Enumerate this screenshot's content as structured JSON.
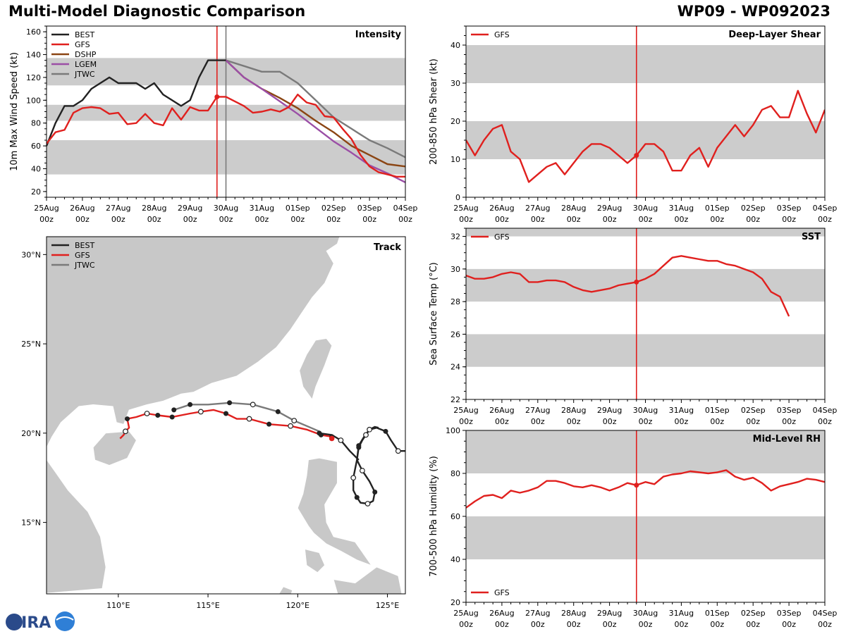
{
  "header": {
    "title": "Multi-Model Diagnostic Comparison",
    "storm_id": "WP09 - WP092023"
  },
  "logo_text": "CIRA",
  "colors": {
    "BEST": "#222222",
    "GFS": "#e0201e",
    "DSHP": "#8b4513",
    "LGEM": "#9b4fa6",
    "JTWC": "#7a7a7a",
    "band": "#cccccc",
    "land": "#c8c8c8"
  },
  "time_axis": {
    "labels": [
      "25Aug",
      "26Aug",
      "27Aug",
      "28Aug",
      "29Aug",
      "30Aug",
      "31Aug",
      "01Sep",
      "02Sep",
      "03Sep",
      "04Sep"
    ],
    "sublabel": "00z",
    "range_days": [
      0,
      10
    ],
    "current_day": 4.75,
    "jtwc_init_day": 5.0
  },
  "chart_data": [
    {
      "id": "intensity",
      "type": "line",
      "title": "Intensity",
      "ylabel": "10m Max Wind Speed (kt)",
      "ylim": [
        15,
        165
      ],
      "yticks": [
        20,
        40,
        60,
        80,
        100,
        120,
        140,
        160
      ],
      "bands": [
        [
          35,
          65
        ],
        [
          82,
          96
        ],
        [
          113,
          137
        ]
      ],
      "legend": [
        "BEST",
        "GFS",
        "DSHP",
        "LGEM",
        "JTWC"
      ],
      "series": [
        {
          "name": "BEST",
          "x": [
            0,
            0.25,
            0.5,
            0.75,
            1,
            1.25,
            1.5,
            1.75,
            2,
            2.25,
            2.5,
            2.75,
            3,
            3.25,
            3.5,
            3.75,
            4,
            4.25,
            4.5,
            4.75,
            5
          ],
          "y": [
            60,
            80,
            95,
            95,
            100,
            110,
            115,
            120,
            115,
            115,
            115,
            110,
            115,
            105,
            100,
            95,
            100,
            120,
            135,
            135,
            135
          ]
        },
        {
          "name": "GFS",
          "x": [
            0,
            0.25,
            0.5,
            0.75,
            1,
            1.25,
            1.5,
            1.75,
            2,
            2.25,
            2.5,
            2.75,
            3,
            3.25,
            3.5,
            3.75,
            4,
            4.25,
            4.5,
            4.75,
            5,
            5.25,
            5.5,
            5.75,
            6,
            6.25,
            6.5,
            6.75,
            7,
            7.25,
            7.5,
            7.75,
            8,
            8.25,
            8.5,
            8.75,
            9,
            9.25,
            9.5,
            9.75,
            10
          ],
          "y": [
            62,
            72,
            74,
            89,
            93,
            94,
            93,
            88,
            89,
            79,
            80,
            88,
            80,
            78,
            93,
            83,
            94,
            91,
            91,
            103,
            103,
            99,
            95,
            89,
            90,
            92,
            90,
            94,
            105,
            98,
            96,
            86,
            85,
            75,
            66,
            52,
            42,
            37,
            35,
            33,
            33
          ]
        },
        {
          "name": "DSHP",
          "x": [
            5,
            5.5,
            6,
            6.5,
            7,
            7.5,
            8,
            8.5,
            9,
            9.5,
            10
          ],
          "y": [
            135,
            120,
            110,
            102,
            93,
            82,
            72,
            60,
            52,
            44,
            42
          ]
        },
        {
          "name": "LGEM",
          "x": [
            5,
            5.5,
            6,
            6.5,
            7,
            7.5,
            8,
            8.5,
            9,
            9.5,
            10
          ],
          "y": [
            135,
            120,
            110,
            99,
            88,
            76,
            64,
            54,
            43,
            36,
            28
          ]
        },
        {
          "name": "JTWC",
          "x": [
            5,
            5.5,
            6,
            6.5,
            7,
            7.5,
            8,
            8.5,
            9,
            9.5,
            10
          ],
          "y": [
            135,
            130,
            125,
            125,
            115,
            100,
            85,
            75,
            65,
            58,
            50
          ]
        }
      ],
      "marker": {
        "series": "GFS",
        "x": 4.75,
        "y": 103
      }
    },
    {
      "id": "shear",
      "type": "line",
      "title": "Deep-Layer Shear",
      "ylabel": "200-850 hPa Shear (kt)",
      "ylim": [
        0,
        45
      ],
      "yticks": [
        0,
        10,
        20,
        30,
        40
      ],
      "bands": [
        [
          10,
          20
        ],
        [
          30,
          40
        ]
      ],
      "legend": [
        "GFS"
      ],
      "series": [
        {
          "name": "GFS",
          "x": [
            0,
            0.25,
            0.5,
            0.75,
            1,
            1.25,
            1.5,
            1.75,
            2,
            2.25,
            2.5,
            2.75,
            3,
            3.25,
            3.5,
            3.75,
            4,
            4.25,
            4.5,
            4.75,
            5,
            5.25,
            5.5,
            5.75,
            6,
            6.25,
            6.5,
            6.75,
            7,
            7.25,
            7.5,
            7.75,
            8,
            8.25,
            8.5,
            8.75,
            9,
            9.25,
            9.5,
            9.75,
            10
          ],
          "y": [
            15,
            11,
            15,
            18,
            19,
            12,
            10,
            4,
            6,
            8,
            9,
            6,
            9,
            12,
            14,
            14,
            13,
            11,
            9,
            11,
            14,
            14,
            12,
            7,
            7,
            11,
            13,
            8,
            13,
            16,
            19,
            16,
            19,
            23,
            24,
            21,
            21,
            28,
            22,
            17,
            23
          ]
        }
      ],
      "marker": {
        "series": "GFS",
        "x": 4.75,
        "y": 11
      }
    },
    {
      "id": "sst",
      "type": "line",
      "title": "SST",
      "ylabel": "Sea Surface Temp (°C)",
      "ylim": [
        22,
        32.5
      ],
      "yticks": [
        22,
        24,
        26,
        28,
        30,
        32
      ],
      "bands": [
        [
          24,
          26
        ],
        [
          28,
          30
        ],
        [
          32,
          32.5
        ]
      ],
      "legend": [
        "GFS"
      ],
      "series": [
        {
          "name": "GFS",
          "x": [
            0,
            0.25,
            0.5,
            0.75,
            1,
            1.25,
            1.5,
            1.75,
            2,
            2.25,
            2.5,
            2.75,
            3,
            3.25,
            3.5,
            3.75,
            4,
            4.25,
            4.5,
            4.75,
            5,
            5.25,
            5.5,
            5.75,
            6,
            6.25,
            6.5,
            6.75,
            7,
            7.25,
            7.5,
            7.75,
            8,
            8.25,
            8.5,
            8.75,
            9
          ],
          "y": [
            29.6,
            29.4,
            29.4,
            29.5,
            29.7,
            29.8,
            29.7,
            29.2,
            29.2,
            29.3,
            29.3,
            29.2,
            28.9,
            28.7,
            28.6,
            28.7,
            28.8,
            29.0,
            29.1,
            29.2,
            29.4,
            29.7,
            30.2,
            30.7,
            30.8,
            30.7,
            30.6,
            30.5,
            30.5,
            30.3,
            30.2,
            30.0,
            29.8,
            29.4,
            28.6,
            28.3,
            27.1
          ]
        }
      ],
      "marker": {
        "series": "GFS",
        "x": 4.75,
        "y": 29.2
      }
    },
    {
      "id": "rh",
      "type": "line",
      "title": "Mid-Level RH",
      "ylabel": "700-500 hPa Humidity (%)",
      "ylim": [
        20,
        100
      ],
      "yticks": [
        20,
        40,
        60,
        80,
        100
      ],
      "bands": [
        [
          40,
          60
        ],
        [
          80,
          100
        ]
      ],
      "legend": [
        "GFS"
      ],
      "legend_position": "bottom-left",
      "series": [
        {
          "name": "GFS",
          "x": [
            0,
            0.25,
            0.5,
            0.75,
            1,
            1.25,
            1.5,
            1.75,
            2,
            2.25,
            2.5,
            2.75,
            3,
            3.25,
            3.5,
            3.75,
            4,
            4.25,
            4.5,
            4.75,
            5,
            5.25,
            5.5,
            5.75,
            6,
            6.25,
            6.5,
            6.75,
            7,
            7.25,
            7.5,
            7.75,
            8,
            8.25,
            8.5,
            8.75,
            9,
            9.25,
            9.5,
            9.75,
            10
          ],
          "y": [
            64,
            67,
            69.5,
            70,
            68.5,
            72,
            71,
            72,
            73.5,
            76.5,
            76.5,
            75.5,
            74,
            73.5,
            74.5,
            73.5,
            72,
            73.5,
            75.5,
            74.5,
            76,
            75,
            78.5,
            79.5,
            80,
            81,
            80.5,
            80,
            80.5,
            81.5,
            78.5,
            77,
            78,
            75.5,
            72,
            74,
            75,
            76,
            77.5,
            77,
            76
          ]
        }
      ],
      "marker": {
        "series": "GFS",
        "x": 4.75,
        "y": 74.5
      }
    },
    {
      "id": "track",
      "type": "scatter",
      "title": "Track",
      "xlim": [
        106,
        126
      ],
      "ylim": [
        11,
        31
      ],
      "xticks": [
        110,
        115,
        120,
        125
      ],
      "xtick_labels": [
        "110°E",
        "115°E",
        "120°E",
        "125°E"
      ],
      "yticks": [
        15,
        20,
        25,
        30
      ],
      "ytick_labels": [
        "15°N",
        "20°N",
        "25°N",
        "30°N"
      ],
      "legend": [
        "BEST",
        "GFS",
        "JTWC"
      ],
      "series": [
        {
          "name": "BEST",
          "lon": [
            126,
            125.6,
            125.2,
            124.9,
            124.4,
            124,
            123.7,
            123.4,
            123.3,
            123.6,
            124,
            124.3,
            124.2,
            123.9,
            123.5,
            123.3,
            123.1,
            123.1,
            123.3,
            123.4,
            123.6,
            123.8,
            124.0,
            124.3,
            124.5
          ],
          "lat": [
            19.0,
            19.0,
            19.6,
            20.1,
            20.3,
            20.2,
            19.8,
            19.3,
            18.5,
            17.9,
            17.3,
            16.7,
            16.2,
            16.05,
            16.1,
            16.4,
            16.8,
            17.5,
            18.5,
            19.2,
            19.6,
            19.9,
            20.2,
            20.35,
            20.3
          ],
          "open_idx": [
            1,
            5,
            9,
            13,
            17,
            21
          ],
          "filled_idx": [
            3,
            7,
            11,
            15,
            19
          ]
        },
        {
          "name": "BEST_west",
          "lon": [
            123.4,
            122.9,
            122.4,
            121.9,
            121.2
          ],
          "lat": [
            18.5,
            19.0,
            19.6,
            19.9,
            20.0
          ],
          "open_idx": [
            2
          ],
          "filled_idx": [
            4
          ]
        },
        {
          "name": "GFS",
          "lon": [
            121.9,
            121.3,
            120.5,
            119.6,
            118.4,
            117.3,
            116.6,
            116.0,
            115.3,
            114.6,
            114.0,
            113.0,
            112.2,
            111.6,
            111.0,
            110.5,
            110.6,
            110.4,
            110.3,
            110.1
          ],
          "lat": [
            19.8,
            19.9,
            20.2,
            20.4,
            20.5,
            20.8,
            20.8,
            21.1,
            21.3,
            21.2,
            21.1,
            20.9,
            21.0,
            21.1,
            20.9,
            20.8,
            20.3,
            20.1,
            19.9,
            19.7
          ],
          "open_idx": [
            3,
            5,
            9,
            13,
            17
          ],
          "filled_idx": [
            0,
            1,
            4,
            7,
            11,
            12,
            15
          ]
        },
        {
          "name": "JTWC",
          "lon": [
            121.2,
            120.5,
            119.8,
            118.9,
            117.5,
            116.2,
            115.0,
            114.0,
            113.1
          ],
          "lat": [
            20.1,
            20.4,
            20.7,
            21.2,
            21.6,
            21.7,
            21.6,
            21.6,
            21.3
          ],
          "open_idx": [
            2,
            4
          ],
          "filled_idx": [
            3,
            5,
            7,
            8
          ]
        }
      ]
    }
  ]
}
